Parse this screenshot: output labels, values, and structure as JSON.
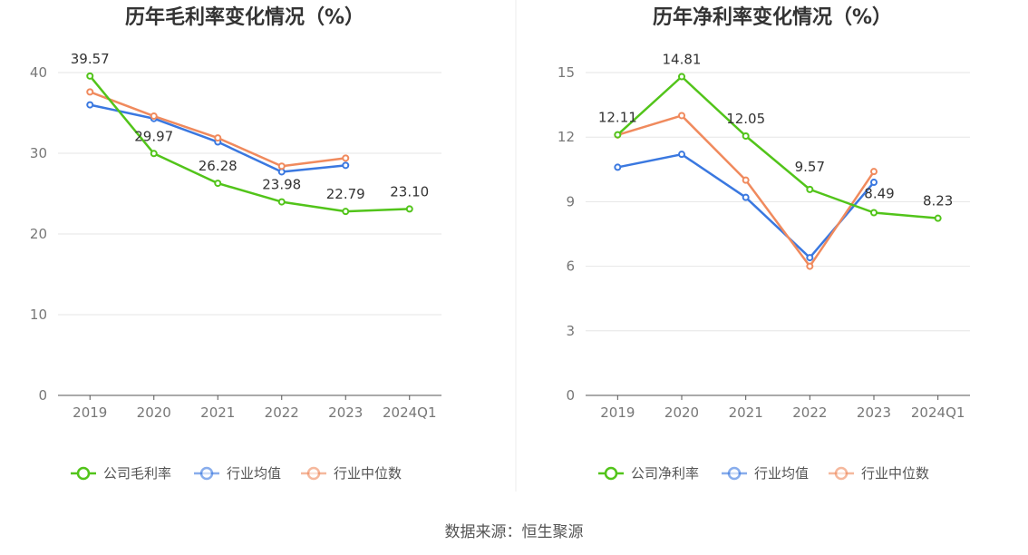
{
  "source": "数据来源：恒生聚源",
  "chart_data": [
    {
      "type": "line",
      "title": "历年毛利率变化情况（%）",
      "categories": [
        "2019",
        "2020",
        "2021",
        "2022",
        "2023",
        "2024Q1"
      ],
      "ylim": [
        0,
        40
      ],
      "yticks": [
        0,
        10,
        20,
        30,
        40
      ],
      "grid": true,
      "legend_position": "bottom",
      "series": [
        {
          "name": "公司毛利率",
          "color": "#52c41a",
          "values": [
            39.57,
            29.97,
            26.28,
            23.98,
            22.79,
            23.1
          ],
          "labels": [
            "39.57",
            "29.97",
            "26.28",
            "23.98",
            "22.79",
            "23.10"
          ]
        },
        {
          "name": "行业均值",
          "color": "#3a78e0",
          "values": [
            36.0,
            34.3,
            31.4,
            27.7,
            28.5,
            null
          ]
        },
        {
          "name": "行业中位数",
          "color": "#f08a5d",
          "values": [
            37.6,
            34.6,
            31.9,
            28.4,
            29.4,
            null
          ]
        }
      ]
    },
    {
      "type": "line",
      "title": "历年净利率变化情况（%）",
      "categories": [
        "2019",
        "2020",
        "2021",
        "2022",
        "2023",
        "2024Q1"
      ],
      "ylim": [
        0,
        15
      ],
      "yticks": [
        0,
        3,
        6,
        9,
        12,
        15
      ],
      "grid": true,
      "legend_position": "bottom",
      "series": [
        {
          "name": "公司净利率",
          "color": "#52c41a",
          "values": [
            12.11,
            14.81,
            12.05,
            9.57,
            8.49,
            8.23
          ],
          "labels": [
            "12.11",
            "14.81",
            "12.05",
            "9.57",
            "8.49",
            "8.23"
          ]
        },
        {
          "name": "行业均值",
          "color": "#3a78e0",
          "values": [
            10.6,
            11.2,
            9.2,
            6.4,
            9.9,
            null
          ]
        },
        {
          "name": "行业中位数",
          "color": "#f08a5d",
          "values": [
            12.1,
            13.0,
            10.0,
            6.0,
            10.4,
            null
          ]
        }
      ]
    }
  ]
}
